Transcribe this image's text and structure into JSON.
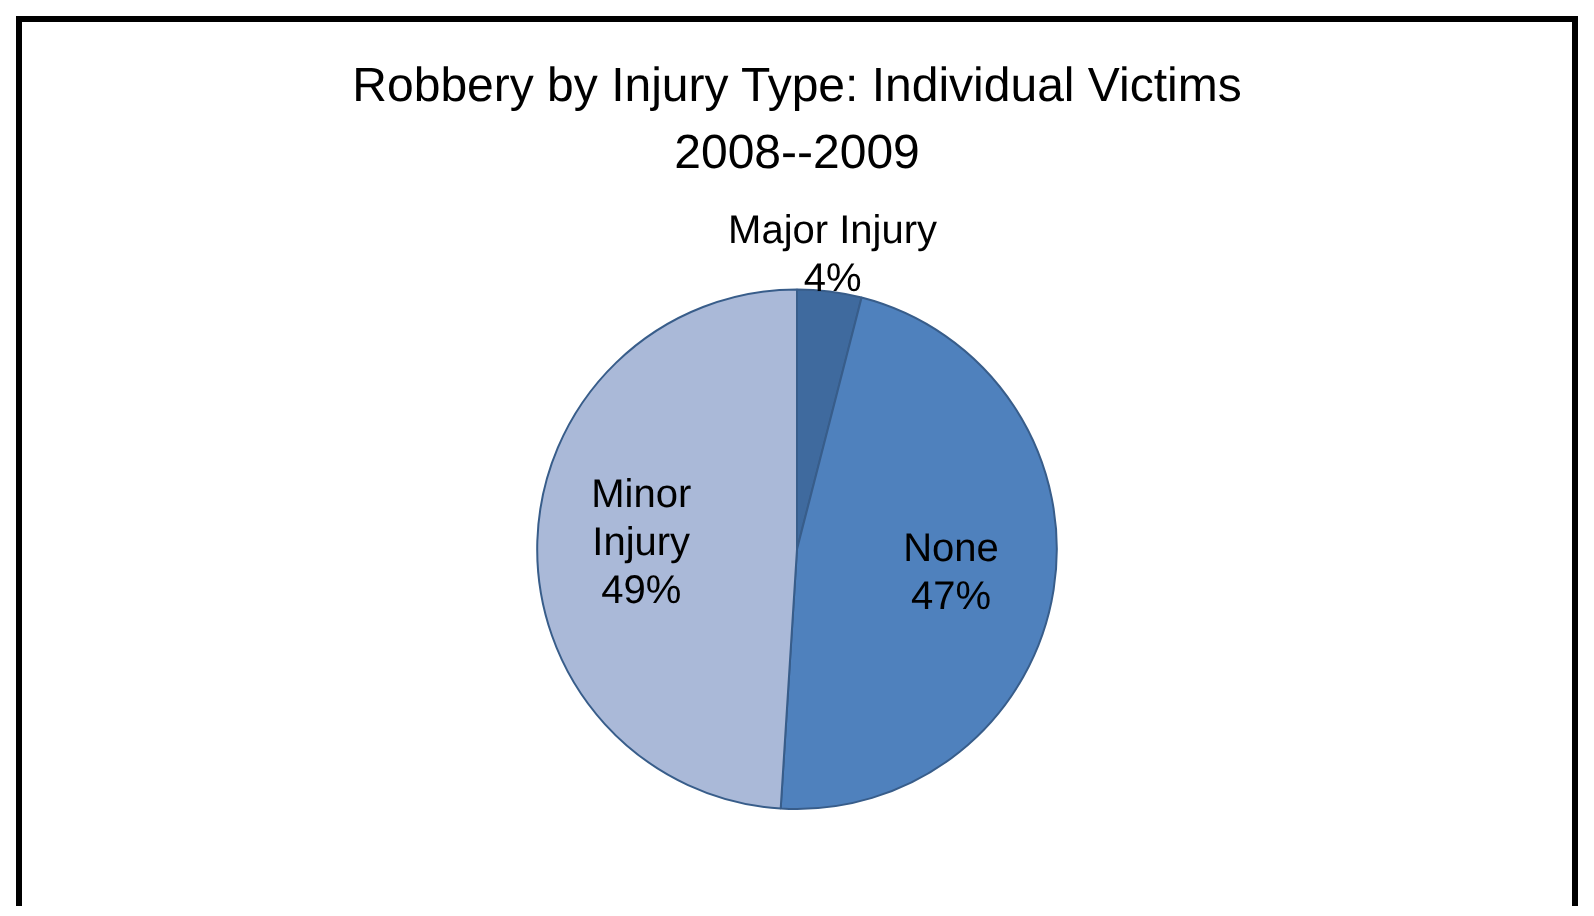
{
  "chart_data": {
    "type": "pie",
    "title": "Robbery by Injury Type: Individual Victims\n2008--2009",
    "categories": [
      "Major Injury",
      "None",
      "Minor Injury"
    ],
    "values": [
      4,
      47,
      49
    ],
    "colors": [
      "#3f6a9e",
      "#4f81bd",
      "#aab9d8"
    ],
    "value_labels": [
      "4%",
      "47%",
      "49%"
    ],
    "legend": false
  }
}
